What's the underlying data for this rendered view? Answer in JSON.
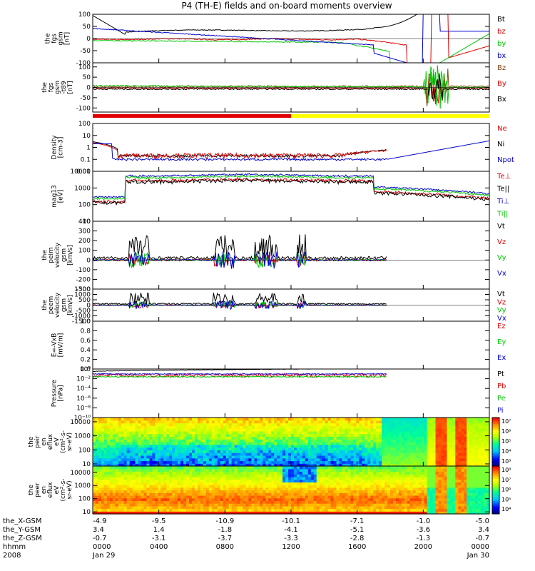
{
  "title": "P4 (TH-E) fields and on-board moments overview",
  "colors": {
    "black": "#000000",
    "red": "#e00000",
    "green": "#00c800",
    "blue": "#0000d0",
    "yellow": "#ffff00",
    "brown": "#8b4513"
  },
  "chart_data": [
    {
      "type": "line",
      "name": "fgs",
      "ylabel": [
        "the",
        "fgs",
        "gsm",
        "[nT]"
      ],
      "ylim": [
        -100,
        100
      ],
      "yticks": [
        "100",
        "50",
        "0",
        "-50",
        "-100"
      ],
      "yticks_v": [
        100,
        50,
        0,
        -50,
        -100
      ],
      "legend": [
        {
          "label": "Bt",
          "color": "#000000"
        },
        {
          "label": "bz",
          "color": "#e00000"
        },
        {
          "label": "by",
          "color": "#00c800"
        },
        {
          "label": "bx",
          "color": "#0000d0"
        }
      ]
    },
    {
      "type": "line",
      "name": "fgs-hp",
      "ylabel": [
        "the",
        "fgs",
        "gsm",
        "-t89",
        "[nT]"
      ],
      "ylim": [
        -120,
        120
      ],
      "yticks": [
        "100",
        "50",
        "0",
        "-50",
        "-100"
      ],
      "yticks_v": [
        100,
        50,
        0,
        -50,
        -100
      ],
      "legend": [
        {
          "label": "Bz",
          "color": "#8b4513"
        },
        {
          "label": "By",
          "color": "#e00000"
        },
        {
          "label": "Bx",
          "color": "#000000"
        }
      ]
    },
    {
      "type": "line",
      "name": "density",
      "scale": "log",
      "ylabel": [
        "Density",
        "[cm-3]"
      ],
      "ylim": [
        0.01,
        100
      ],
      "yticks": [
        "100",
        "10",
        "1",
        "0.1",
        "0.01"
      ],
      "yticks_v": [
        100,
        10,
        1,
        0.1,
        0.01
      ],
      "legend": [
        {
          "label": "Ne",
          "color": "#e00000"
        },
        {
          "label": "Ni",
          "color": "#000000"
        },
        {
          "label": "Npot",
          "color": "#0000d0"
        }
      ]
    },
    {
      "type": "line",
      "name": "temperature",
      "scale": "log",
      "ylabel": [
        "mag13",
        "[eV]"
      ],
      "ylim": [
        10,
        10000
      ],
      "yticks": [
        "10000",
        "1000",
        "100",
        "10"
      ],
      "yticks_v": [
        10000,
        1000,
        100,
        10
      ],
      "legend": [
        {
          "label": "Te⊥",
          "color": "#e00000"
        },
        {
          "label": "Te||",
          "color": "#000000"
        },
        {
          "label": "Ti⊥",
          "color": "#0000d0"
        },
        {
          "label": "Ti||",
          "color": "#00c800"
        }
      ]
    },
    {
      "type": "line",
      "name": "ion-velocity",
      "ylabel": [
        "the",
        "peim",
        "velocity",
        "gsm",
        "[km/s]"
      ],
      "ylim": [
        -300,
        400
      ],
      "yticks": [
        "400",
        "300",
        "200",
        "100",
        "0",
        "-100",
        "-200",
        "-300"
      ],
      "yticks_v": [
        400,
        300,
        200,
        100,
        0,
        -100,
        -200,
        -300
      ],
      "legend": [
        {
          "label": "Vt",
          "color": "#000000"
        },
        {
          "label": "Vz",
          "color": "#e00000"
        },
        {
          "label": "Vy",
          "color": "#00c800"
        },
        {
          "label": "Vx",
          "color": "#0000d0"
        }
      ]
    },
    {
      "type": "line",
      "name": "electron-velocity",
      "ylabel": [
        "the",
        "peem",
        "velocity",
        "gsm",
        "[km/s]"
      ],
      "ylim": [
        -1500,
        1500
      ],
      "yticks": [
        "1500",
        "1000",
        "500",
        "0",
        "-500",
        "-1000",
        "-1500"
      ],
      "yticks_v": [
        1500,
        1000,
        500,
        0,
        -500,
        -1000,
        -1500
      ],
      "legend": [
        {
          "label": "Vt",
          "color": "#000000"
        },
        {
          "label": "Vz",
          "color": "#e00000"
        },
        {
          "label": "Vy",
          "color": "#00c800"
        },
        {
          "label": "Vx",
          "color": "#0000d0"
        }
      ]
    },
    {
      "type": "line",
      "name": "e-field",
      "ylabel": [
        "E=-VxB",
        "[mV/m]"
      ],
      "ylim": [
        0,
        1
      ],
      "yticks": [
        "1.0",
        "0.8",
        "0.6",
        "0.4",
        "0.2",
        "0.0"
      ],
      "yticks_v": [
        1,
        0.8,
        0.6,
        0.4,
        0.2,
        0
      ],
      "legend": [
        {
          "label": "Ez",
          "color": "#e00000"
        },
        {
          "label": "Ey",
          "color": "#00c800"
        },
        {
          "label": "Ex",
          "color": "#0000d0"
        }
      ]
    },
    {
      "type": "line",
      "name": "pressure",
      "scale": "log",
      "ylabel": [
        "Pressure",
        "[nPa]"
      ],
      "ylim": [
        1e-10,
        1
      ],
      "yticks": [
        "10⁰",
        "10⁻²",
        "10⁻⁴",
        "10⁻⁶",
        "10⁻⁸",
        "10⁻¹⁰"
      ],
      "yticks_v": [
        1,
        0.01,
        0.0001,
        1e-06,
        1e-08,
        1e-10
      ],
      "legend": [
        {
          "label": "Pt",
          "color": "#000000"
        },
        {
          "label": "Pb",
          "color": "#e00000"
        },
        {
          "label": "Pe",
          "color": "#00c800"
        },
        {
          "label": "Pi",
          "color": "#0000d0"
        }
      ]
    },
    {
      "type": "heatmap",
      "name": "ion-spectrogram",
      "scale": "log",
      "ylabel": [
        "the",
        "peir",
        "en",
        "eflux",
        "eV",
        "(cm²-s-",
        "sr-eV)"
      ],
      "ylim": [
        7,
        20000
      ],
      "yticks": [
        "10000",
        "1000",
        "100",
        "10"
      ],
      "yticks_v": [
        10000,
        1000,
        100,
        10
      ],
      "colorbar": [
        "10⁷",
        "10⁶",
        "10⁵",
        "10⁴",
        "10³"
      ]
    },
    {
      "type": "heatmap",
      "name": "electron-spectrogram",
      "scale": "log",
      "ylabel": [
        "the",
        "peer",
        "en",
        "eflux",
        "eV",
        "(cm²-s-",
        "sr-eV)"
      ],
      "ylim": [
        7,
        30000
      ],
      "yticks": [
        "10000",
        "1000",
        "100",
        "10"
      ],
      "yticks_v": [
        10000,
        1000,
        100,
        10
      ],
      "colorbar": [
        "10⁸",
        "10⁷",
        "10⁶",
        "10⁵",
        "10⁴"
      ]
    }
  ],
  "ephemeris": {
    "labels": [
      "the_X-GSM",
      "the_Y-GSM",
      "the_Z-GSM",
      "hhmm",
      "2008"
    ],
    "columns": [
      {
        "hour": 0,
        "x": "-4.9",
        "y": "3.4",
        "z": "-0.7",
        "t": "0000",
        "d": "Jan 29"
      },
      {
        "hour": 4,
        "x": "-9.5",
        "y": "1.4",
        "z": "-3.1",
        "t": "0400",
        "d": ""
      },
      {
        "hour": 8,
        "x": "-10.9",
        "y": "-1.8",
        "z": "-3.7",
        "t": "0800",
        "d": ""
      },
      {
        "hour": 12,
        "x": "-10.1",
        "y": "-4.1",
        "z": "-3.3",
        "t": "1200",
        "d": ""
      },
      {
        "hour": 16,
        "x": "-7.1",
        "y": "-5.1",
        "z": "-2.8",
        "t": "1600",
        "d": ""
      },
      {
        "hour": 20,
        "x": "-1.0",
        "y": "-3.6",
        "z": "-1.3",
        "t": "2000",
        "d": ""
      },
      {
        "hour": 24,
        "x": "-5.0",
        "y": "3.4",
        "z": "-0.7",
        "t": "0000",
        "d": "Jan 30"
      }
    ]
  }
}
